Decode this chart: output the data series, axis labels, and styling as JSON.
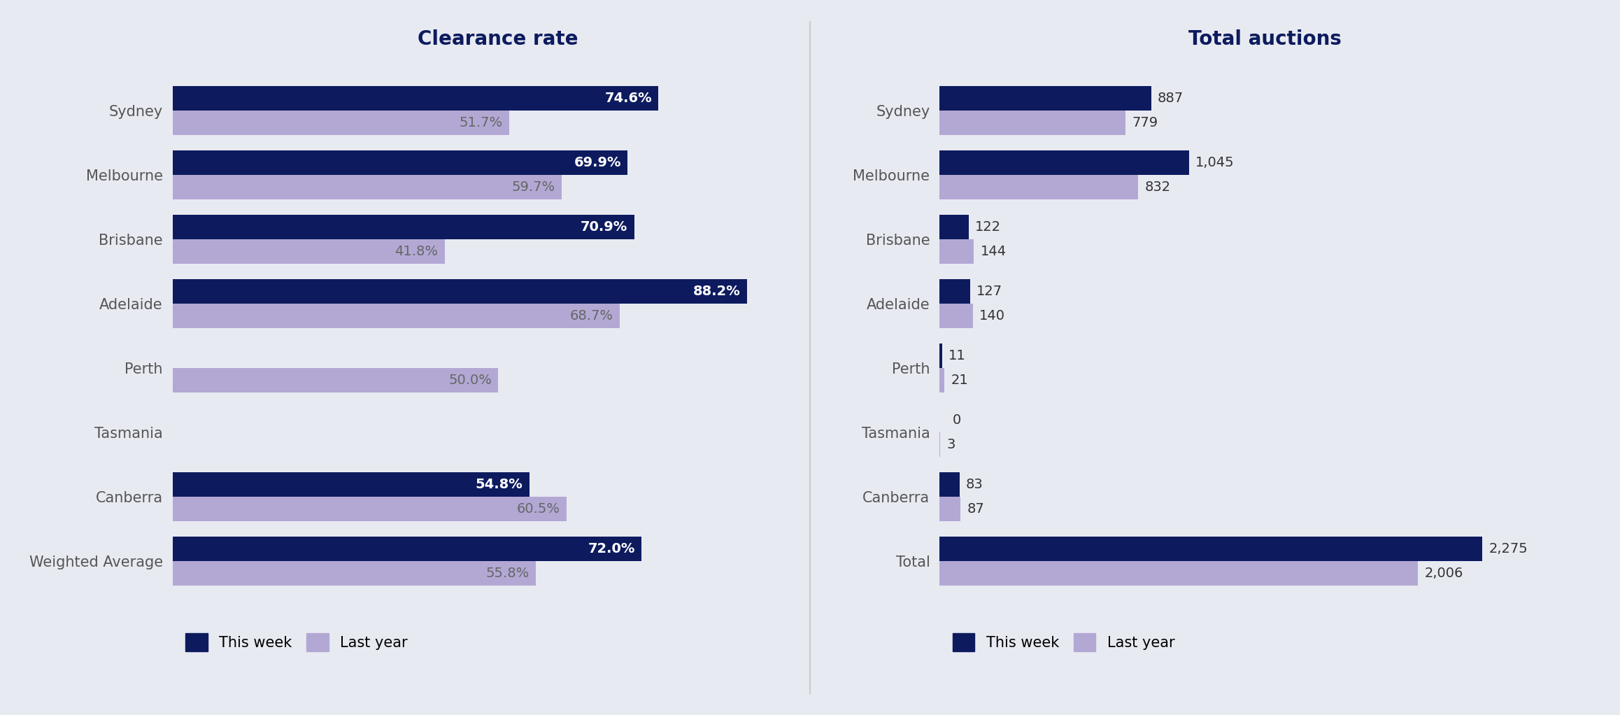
{
  "left_title": "Clearance rate",
  "right_title": "Total auctions",
  "categories": [
    "Sydney",
    "Melbourne",
    "Brisbane",
    "Adelaide",
    "Perth",
    "Tasmania",
    "Canberra",
    "Weighted Average"
  ],
  "clearance_this_week": [
    74.6,
    69.9,
    70.9,
    88.2,
    null,
    null,
    54.8,
    72.0
  ],
  "clearance_last_year": [
    51.7,
    59.7,
    41.8,
    68.7,
    50.0,
    null,
    60.5,
    55.8
  ],
  "auctions_categories": [
    "Sydney",
    "Melbourne",
    "Brisbane",
    "Adelaide",
    "Perth",
    "Tasmania",
    "Canberra",
    "Total"
  ],
  "auctions_this_week": [
    887,
    1045,
    122,
    127,
    11,
    0,
    83,
    2275
  ],
  "auctions_last_year": [
    779,
    832,
    144,
    140,
    21,
    3,
    87,
    2006
  ],
  "color_this_week": "#0d1b5e",
  "color_last_year": "#b3a8d4",
  "background_color": "#e8eaf2",
  "label_this_week": "This week",
  "label_last_year": "Last year",
  "bar_height": 0.38,
  "title_fontsize": 20,
  "label_fontsize": 14,
  "tick_fontsize": 15,
  "legend_fontsize": 15,
  "annotation_fontsize": 14
}
